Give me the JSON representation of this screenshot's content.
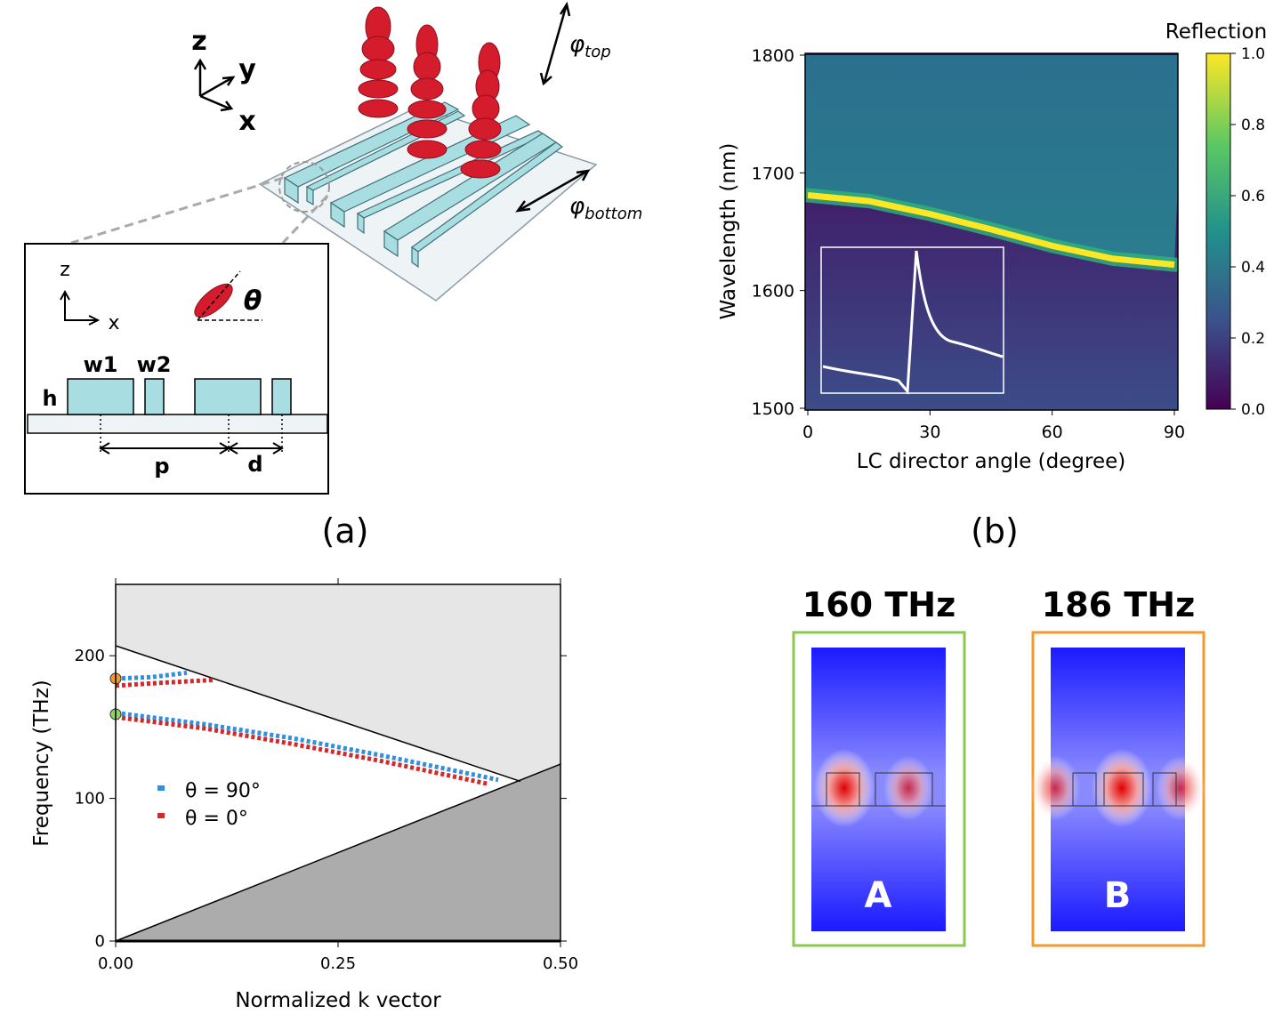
{
  "diagram": {
    "axes3d": [
      "z",
      "y",
      "x"
    ],
    "phi_top": {
      "symbol": "φ",
      "sub": "top"
    },
    "phi_bottom": {
      "symbol": "φ",
      "sub": "bottom"
    },
    "inset_axes": [
      "z",
      "x"
    ],
    "theta": "θ",
    "w1": "w1",
    "w2": "w2",
    "h": "h",
    "p": "p",
    "d": "d"
  },
  "panel_labels": [
    "(a)",
    "(b)"
  ],
  "chart_data": [
    {
      "type": "heatmap",
      "colorbar_label": "Reflection",
      "xlabel": "LC director angle (degree)",
      "ylabel": "Wavelength (nm)",
      "xlim": [
        0,
        90
      ],
      "xticks": [
        0,
        30,
        60,
        90
      ],
      "ylim": [
        1500,
        1800
      ],
      "yticks": [
        1500,
        1600,
        1700,
        1800
      ],
      "clim": [
        0,
        1
      ],
      "cticks": [
        {
          "value": 0,
          "label": "0.0"
        },
        0.2,
        0.4,
        0.6,
        0.8,
        {
          "value": 1,
          "label": "1.0"
        }
      ],
      "x": [
        0,
        15,
        30,
        45,
        60,
        75,
        90
      ],
      "values": [
        1681,
        1676,
        1665,
        1652,
        1638,
        1627,
        1622
      ]
    },
    {
      "type": "line",
      "xlabel": "Normalized k vector",
      "ylabel": "Frequency (THz)",
      "xlim": [
        0,
        0.5
      ],
      "xticks": [
        {
          "value": 0,
          "label": "0.00"
        },
        0.25,
        {
          "value": 0.5,
          "label": "0.50"
        }
      ],
      "ylim": [
        0,
        250
      ],
      "yticks": [
        0,
        100,
        200
      ],
      "series": [
        {
          "name": "θ = 90°",
          "color": "#2f8fe0",
          "x": [
            0,
            0.04,
            0.08,
            null,
            0,
            0.1,
            0.2,
            0.3,
            0.43
          ],
          "values": [
            184,
            185,
            188,
            null,
            160,
            152,
            142,
            130,
            113
          ]
        },
        {
          "name": "θ = 0°",
          "color": "#d62828",
          "x": [
            0,
            0.05,
            0.11,
            null,
            0,
            0.1,
            0.2,
            0.3,
            0.42
          ],
          "values": [
            179,
            181,
            183,
            null,
            157,
            149,
            138,
            126,
            110
          ]
        }
      ],
      "light_line": {
        "x": [
          0,
          0.455
        ],
        "values": [
          207,
          112
        ]
      },
      "lower_line": {
        "x": [
          0,
          0.5
        ],
        "values": [
          0,
          124
        ]
      },
      "points": [
        {
          "color": "#f39a2e",
          "value": 184
        },
        {
          "color": "#8fd16a",
          "value": 159
        }
      ]
    }
  ],
  "field_maps": [
    {
      "title": "160 THz",
      "label": "A",
      "color": "#8cc850"
    },
    {
      "title": "186 THz",
      "label": "B",
      "color": "#f39a2e"
    }
  ]
}
